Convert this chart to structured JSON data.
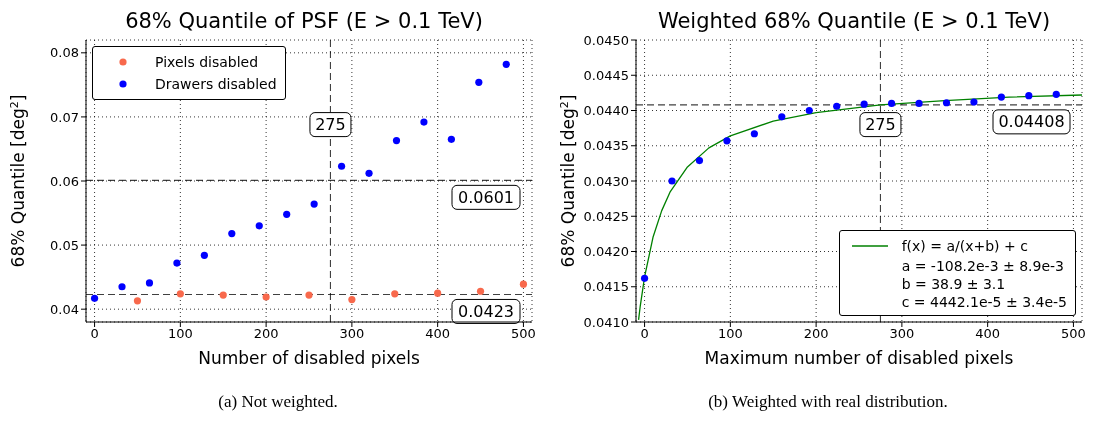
{
  "chart_data": [
    {
      "type": "scatter",
      "title": "68% Quantile of PSF (E > 0.1 TeV)",
      "xlabel": "Number of disabled pixels",
      "ylabel": "68% Quantile [deg$^{2}$]",
      "annotations": [
        "(a) Not weighted."
      ],
      "series": [
        {
          "name": "Pixels disabled",
          "color": "#f8694c",
          "x": [
            50,
            100,
            150,
            200,
            250,
            300,
            350,
            400,
            450,
            500
          ],
          "values": [
            0.0413,
            0.0424,
            0.0422,
            0.0419,
            0.0422,
            0.0415,
            0.0424,
            0.0425,
            0.0428,
            0.0439
          ]
        },
        {
          "name": "Drawers disabled",
          "color": "#0000ff",
          "x": [
            0,
            32,
            64,
            96,
            128,
            160,
            192,
            224,
            256,
            288,
            320,
            352,
            384,
            416,
            448,
            480
          ],
          "values": [
            0.0417,
            0.0435,
            0.0441,
            0.0472,
            0.0484,
            0.0518,
            0.053,
            0.0548,
            0.0564,
            0.0623,
            0.0612,
            0.0663,
            0.0692,
            0.0665,
            0.0754,
            0.0782
          ]
        }
      ],
      "xlim": [
        -10,
        510
      ],
      "xticks": [
        0,
        100,
        200,
        300,
        400,
        500
      ],
      "ylim": [
        0.038,
        0.082
      ],
      "yticks": [
        0.04,
        0.05,
        0.06,
        0.07,
        0.08
      ],
      "ref_lines": [
        {
          "axis": "y",
          "value": 0.0423,
          "label": "0.0423",
          "line_style": "dashed"
        },
        {
          "axis": "y",
          "value": 0.0601,
          "label": "0.0601",
          "line_style": "dashed"
        },
        {
          "axis": "x",
          "value": 275,
          "label": "275",
          "line_style": "dashed"
        }
      ],
      "grid": true,
      "legend": "top left",
      "marker": "circle"
    },
    {
      "type": "scatter",
      "title": "Weighted 68% Quantile (E > 0.1 TeV)",
      "xlabel": "Maximum number of disabled pixels",
      "ylabel": "68% Quantile [deg$^{2}$]",
      "annotations": [
        "(b) Weighted with real distribution.",
        "a = -108.2e-3 ± 8.9e-3",
        "b = 38.9 ± 3.1",
        "c = 4442.1e-5 ± 3.4e-5"
      ],
      "series": [
        {
          "type": "line",
          "marker": "none",
          "name": "f(x) = a/(x+b) + c",
          "color": "#008000",
          "x": [
            -7,
            -5,
            0,
            10,
            20,
            30,
            50,
            75,
            100,
            150,
            200,
            275,
            350,
            425,
            510
          ],
          "values": [
            0.04103,
            0.04123,
            0.04164,
            0.04221,
            0.04258,
            0.04285,
            0.0432,
            0.04347,
            0.04364,
            0.04385,
            0.04397,
            0.04408,
            0.04414,
            0.04419,
            0.04422
          ]
        },
        {
          "color": "#0000ff",
          "x": [
            0,
            32,
            64,
            96,
            128,
            160,
            192,
            224,
            256,
            288,
            320,
            352,
            384,
            416,
            448,
            480
          ],
          "values": [
            0.04162,
            0.043,
            0.04329,
            0.04357,
            0.04367,
            0.04391,
            0.044,
            0.04406,
            0.04409,
            0.0441,
            0.0441,
            0.04411,
            0.04412,
            0.04419,
            0.04421,
            0.04423
          ]
        }
      ],
      "xlim": [
        -10,
        510
      ],
      "xticks": [
        0,
        100,
        200,
        300,
        400,
        500
      ],
      "ylim": [
        0.041,
        0.045
      ],
      "yticks": [
        {
          "value": 0.041,
          "label": "0.0410"
        },
        {
          "value": 0.0415,
          "label": "0.0415"
        },
        {
          "value": 0.042,
          "label": "0.0420"
        },
        {
          "value": 0.0425,
          "label": "0.0425"
        },
        {
          "value": 0.043,
          "label": "0.0430"
        },
        {
          "value": 0.0435,
          "label": "0.0435"
        },
        {
          "value": 0.044,
          "label": "0.0440"
        },
        {
          "value": 0.0445,
          "label": "0.0445"
        },
        {
          "value": 0.045,
          "label": "0.0450"
        }
      ],
      "ref_lines": [
        {
          "axis": "y",
          "value": 0.04408,
          "label": "0.04408",
          "line_style": "dashed"
        },
        {
          "axis": "x",
          "value": 275,
          "label": "275",
          "line_style": "dashed"
        }
      ],
      "grid": true,
      "legend": "bottom right",
      "marker": "circle"
    }
  ]
}
